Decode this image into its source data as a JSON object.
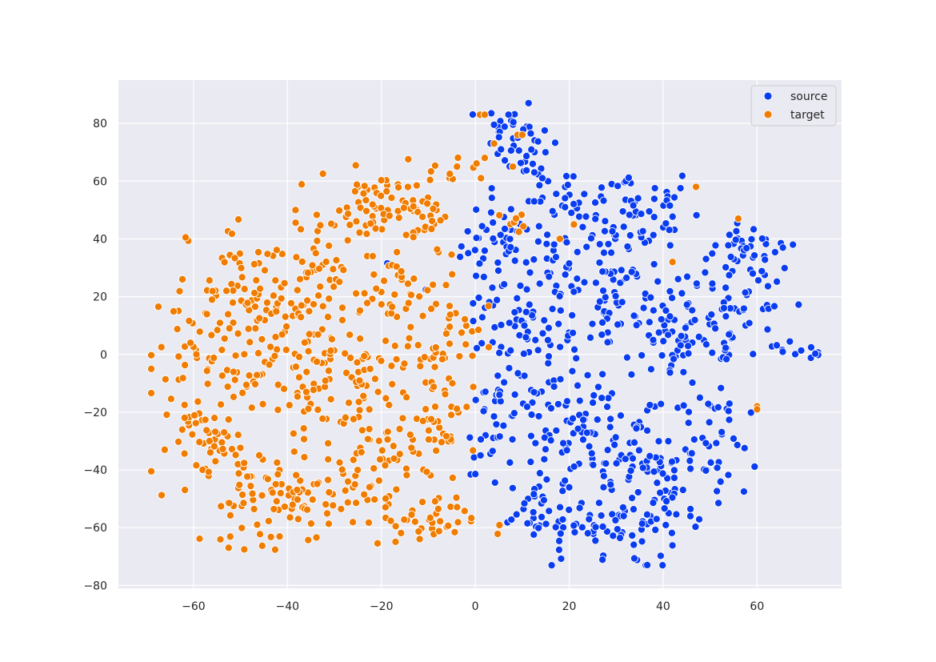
{
  "chart_data": {
    "type": "scatter",
    "title": "",
    "xlabel": "",
    "ylabel": "",
    "xlim": [
      -76,
      78
    ],
    "ylim": [
      -81,
      95
    ],
    "xticks": [
      -60,
      -40,
      -20,
      0,
      20,
      40,
      60
    ],
    "yticks": [
      -80,
      -60,
      -40,
      -20,
      0,
      20,
      40,
      60,
      80
    ],
    "xtick_labels": [
      "−60",
      "−40",
      "−20",
      "0",
      "20",
      "40",
      "60"
    ],
    "ytick_labels": [
      "−80",
      "−60",
      "−40",
      "−20",
      "0",
      "20",
      "40",
      "60",
      "80"
    ],
    "grid": true,
    "legend_position": "top-right",
    "series": [
      {
        "name": "source",
        "color": "#0a3cf0",
        "clusters": [
          {
            "cx": 5,
            "cy": 38,
            "sx": 4,
            "sy": 8,
            "n": 40
          },
          {
            "cx": 20,
            "cy": 45,
            "sx": 8,
            "sy": 10,
            "n": 60
          },
          {
            "cx": 32,
            "cy": 50,
            "sx": 8,
            "sy": 8,
            "n": 50
          },
          {
            "cx": 30,
            "cy": 20,
            "sx": 14,
            "sy": 10,
            "n": 110
          },
          {
            "cx": 10,
            "cy": 5,
            "sx": 6,
            "sy": 10,
            "n": 60
          },
          {
            "cx": 45,
            "cy": 5,
            "sx": 8,
            "sy": 10,
            "n": 70
          },
          {
            "cx": 58,
            "cy": 20,
            "sx": 5,
            "sy": 12,
            "n": 40
          },
          {
            "cx": 58,
            "cy": 36,
            "sx": 4,
            "sy": 3,
            "n": 22
          },
          {
            "cx": 8,
            "cy": 78,
            "sx": 3,
            "sy": 5,
            "n": 30
          },
          {
            "cx": 13,
            "cy": 68,
            "sx": 3,
            "sy": 4,
            "n": 15
          },
          {
            "cx": 4,
            "cy": -25,
            "sx": 3,
            "sy": 8,
            "n": 25
          },
          {
            "cx": 22,
            "cy": -30,
            "sx": 10,
            "sy": 14,
            "n": 110
          },
          {
            "cx": 38,
            "cy": -40,
            "sx": 9,
            "sy": 12,
            "n": 80
          },
          {
            "cx": 50,
            "cy": -28,
            "sx": 4,
            "sy": 10,
            "n": 30
          },
          {
            "cx": 12,
            "cy": -55,
            "sx": 5,
            "sy": 5,
            "n": 25
          },
          {
            "cx": 28,
            "cy": -62,
            "sx": 8,
            "sy": 6,
            "n": 50
          },
          {
            "cx": 69,
            "cy": 2,
            "sx": 3,
            "sy": 2,
            "n": 10
          }
        ]
      },
      {
        "name": "target",
        "color": "#f07c00",
        "clusters": [
          {
            "cx": -45,
            "cy": 20,
            "sx": 8,
            "sy": 14,
            "n": 80
          },
          {
            "cx": -58,
            "cy": 2,
            "sx": 5,
            "sy": 12,
            "n": 50
          },
          {
            "cx": -40,
            "cy": -5,
            "sx": 10,
            "sy": 12,
            "n": 80
          },
          {
            "cx": -55,
            "cy": -30,
            "sx": 5,
            "sy": 6,
            "n": 40
          },
          {
            "cx": -48,
            "cy": -50,
            "sx": 5,
            "sy": 8,
            "n": 50
          },
          {
            "cx": -35,
            "cy": -50,
            "sx": 6,
            "sy": 6,
            "n": 50
          },
          {
            "cx": -20,
            "cy": 52,
            "sx": 5,
            "sy": 6,
            "n": 50
          },
          {
            "cx": -30,
            "cy": 30,
            "sx": 6,
            "sy": 12,
            "n": 50
          },
          {
            "cx": -12,
            "cy": 45,
            "sx": 4,
            "sy": 7,
            "n": 30
          },
          {
            "cx": -15,
            "cy": 20,
            "sx": 6,
            "sy": 8,
            "n": 40
          },
          {
            "cx": -25,
            "cy": -10,
            "sx": 7,
            "sy": 10,
            "n": 60
          },
          {
            "cx": -8,
            "cy": -15,
            "sx": 4,
            "sy": 10,
            "n": 40
          },
          {
            "cx": -20,
            "cy": -38,
            "sx": 7,
            "sy": 8,
            "n": 50
          },
          {
            "cx": -12,
            "cy": -58,
            "sx": 6,
            "sy": 4,
            "n": 40
          },
          {
            "cx": -5,
            "cy": 5,
            "sx": 3,
            "sy": 6,
            "n": 20
          },
          {
            "cx": -4,
            "cy": 62,
            "sx": 3,
            "sy": 3,
            "n": 10
          },
          {
            "cx": 9,
            "cy": 45,
            "sx": 1.5,
            "sy": 2,
            "n": 8
          }
        ],
        "points": [
          [
            -69,
            -5
          ],
          [
            1,
            83
          ],
          [
            2,
            83
          ],
          [
            4,
            73
          ],
          [
            8,
            65
          ],
          [
            9,
            76
          ],
          [
            10,
            76
          ],
          [
            47,
            58
          ],
          [
            42,
            32
          ],
          [
            56,
            47
          ],
          [
            60,
            -18
          ],
          [
            60,
            -19
          ],
          [
            21,
            45
          ],
          [
            18,
            40
          ]
        ]
      }
    ]
  }
}
